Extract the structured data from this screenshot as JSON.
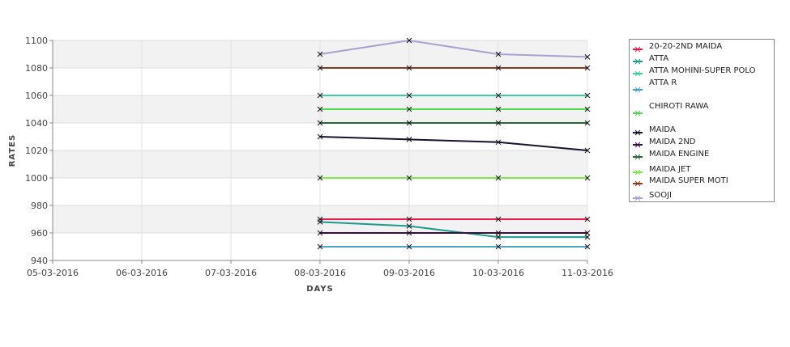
{
  "chart_data": {
    "type": "line",
    "xlabel": "DAYS",
    "ylabel": "RATES",
    "x": [
      "05-03-2016",
      "06-03-2016",
      "07-03-2016",
      "08-03-2016",
      "09-03-2016",
      "10-03-2016",
      "11-03-2016"
    ],
    "ylim": [
      940,
      1100
    ],
    "yticks": [
      940,
      960,
      980,
      1000,
      1020,
      1040,
      1060,
      1080,
      1100
    ],
    "grid": true,
    "legend_position": "right",
    "series": [
      {
        "name": "20-20-2ND MAIDA",
        "color": "#e8194e",
        "values": [
          null,
          null,
          null,
          970,
          970,
          970,
          970
        ]
      },
      {
        "name": "ATTA",
        "color": "#1a9c8c",
        "values": [
          null,
          null,
          null,
          968,
          965,
          957,
          957
        ]
      },
      {
        "name": "ATTA MOHINI-SUPER POLO",
        "color": "#3ec9a8",
        "values": [
          null,
          null,
          null,
          1060,
          1060,
          1060,
          1060
        ]
      },
      {
        "name": "ATTA R",
        "color": "#4aa3c8",
        "values": [
          null,
          null,
          null,
          950,
          950,
          950,
          950
        ]
      },
      {
        "name": "CHIROTI RAWA",
        "color": "#4fd94f",
        "values": [
          null,
          null,
          null,
          1050,
          1050,
          1050,
          1050
        ]
      },
      {
        "name": "MAIDA",
        "color": "#1a1030",
        "values": [
          null,
          null,
          null,
          1030,
          1028,
          1026,
          1020
        ]
      },
      {
        "name": "MAIDA 2ND",
        "color": "#3a1040",
        "values": [
          null,
          null,
          null,
          960,
          960,
          960,
          960
        ]
      },
      {
        "name": "MAIDA ENGINE",
        "color": "#2a6a3a",
        "values": [
          null,
          null,
          null,
          1040,
          1040,
          1040,
          1040
        ]
      },
      {
        "name": "MAIDA JET",
        "color": "#7ee84a",
        "values": [
          null,
          null,
          null,
          1000,
          1000,
          1000,
          1000
        ]
      },
      {
        "name": "MAIDA SUPER MOTI",
        "color": "#8a3a20",
        "values": [
          null,
          null,
          null,
          1080,
          1080,
          1080,
          1080
        ]
      },
      {
        "name": "SOOJI",
        "color": "#a8a0d0",
        "values": [
          null,
          null,
          null,
          1090,
          1100,
          1090,
          1088
        ]
      }
    ]
  }
}
